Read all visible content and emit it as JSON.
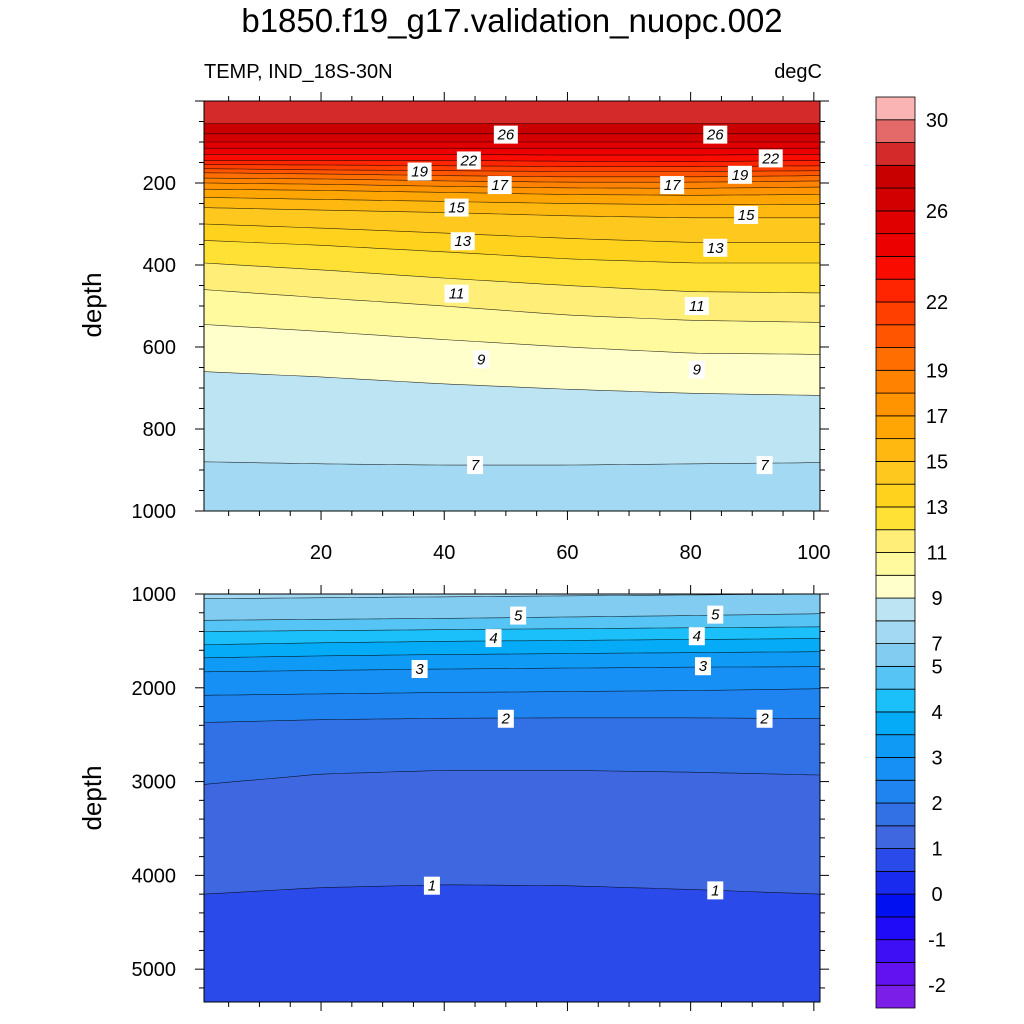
{
  "title": "b1850.f19_g17.validation_nuopc.002",
  "subtitle_left": "TEMP, IND_18S-30N",
  "subtitle_right": "degC",
  "chart_data": [
    {
      "type": "contour",
      "panel": "upper",
      "variable": "TEMP",
      "units": "degC",
      "ylabel": "depth",
      "y_inverted": true,
      "xlim": [
        1,
        101
      ],
      "ylim": [
        0,
        1000
      ],
      "xticks": [
        20,
        40,
        60,
        80,
        100
      ],
      "yticks": [
        200,
        400,
        600,
        800,
        1000
      ],
      "contours": [
        {
          "level": 27,
          "pts": [
            [
              1,
              55
            ],
            [
              20,
              55
            ],
            [
              40,
              55
            ],
            [
              60,
              55
            ],
            [
              80,
              55
            ],
            [
              101,
              55
            ]
          ]
        },
        {
          "level": 26,
          "pts": [
            [
              1,
              80
            ],
            [
              20,
              80
            ],
            [
              40,
              80
            ],
            [
              60,
              80
            ],
            [
              80,
              80
            ],
            [
              101,
              80
            ]
          ]
        },
        {
          "level": 25,
          "pts": [
            [
              1,
              100
            ],
            [
              20,
              100
            ],
            [
              40,
              100
            ],
            [
              60,
              100
            ],
            [
              80,
              100
            ],
            [
              101,
              100
            ]
          ]
        },
        {
          "level": 24,
          "pts": [
            [
              1,
              115
            ],
            [
              20,
              115
            ],
            [
              40,
              115
            ],
            [
              60,
              115
            ],
            [
              80,
              115
            ],
            [
              101,
              115
            ]
          ]
        },
        {
          "level": 23,
          "pts": [
            [
              1,
              130
            ],
            [
              20,
              130
            ],
            [
              40,
              130
            ],
            [
              60,
              132
            ],
            [
              80,
              132
            ],
            [
              101,
              130
            ]
          ]
        },
        {
          "level": 22,
          "pts": [
            [
              1,
              145
            ],
            [
              20,
              145
            ],
            [
              40,
              145
            ],
            [
              60,
              147
            ],
            [
              80,
              148
            ],
            [
              101,
              145
            ]
          ]
        },
        {
          "level": 21,
          "pts": [
            [
              1,
              155
            ],
            [
              20,
              156
            ],
            [
              40,
              158
            ],
            [
              60,
              160
            ],
            [
              80,
              160
            ],
            [
              101,
              158
            ]
          ]
        },
        {
          "level": 20,
          "pts": [
            [
              1,
              165
            ],
            [
              20,
              168
            ],
            [
              40,
              170
            ],
            [
              60,
              172
            ],
            [
              80,
              172
            ],
            [
              101,
              170
            ]
          ]
        },
        {
          "level": 19,
          "pts": [
            [
              1,
              175
            ],
            [
              20,
              178
            ],
            [
              40,
              182
            ],
            [
              60,
              185
            ],
            [
              80,
              185
            ],
            [
              101,
              182
            ]
          ]
        },
        {
          "level": 18,
          "pts": [
            [
              1,
              188
            ],
            [
              20,
              190
            ],
            [
              40,
              195
            ],
            [
              60,
              198
            ],
            [
              80,
              198
            ],
            [
              101,
              195
            ]
          ]
        },
        {
          "level": 17,
          "pts": [
            [
              1,
              200
            ],
            [
              20,
              203
            ],
            [
              40,
              208
            ],
            [
              60,
              212
            ],
            [
              80,
              213
            ],
            [
              101,
              210
            ]
          ]
        },
        {
          "level": 16,
          "pts": [
            [
              1,
              215
            ],
            [
              20,
              218
            ],
            [
              40,
              223
            ],
            [
              60,
              228
            ],
            [
              80,
              230
            ],
            [
              101,
              228
            ]
          ]
        },
        {
          "level": 15,
          "pts": [
            [
              1,
              235
            ],
            [
              20,
              240
            ],
            [
              40,
              245
            ],
            [
              60,
              250
            ],
            [
              80,
              253
            ],
            [
              101,
              252
            ]
          ]
        },
        {
          "level": 14,
          "pts": [
            [
              1,
              260
            ],
            [
              20,
              266
            ],
            [
              40,
              272
            ],
            [
              60,
              280
            ],
            [
              80,
              285
            ],
            [
              101,
              285
            ]
          ]
        },
        {
          "level": 13,
          "pts": [
            [
              1,
              300
            ],
            [
              20,
              310
            ],
            [
              40,
              322
            ],
            [
              60,
              335
            ],
            [
              80,
              345
            ],
            [
              101,
              345
            ]
          ]
        },
        {
          "level": 12,
          "pts": [
            [
              1,
              340
            ],
            [
              20,
              352
            ],
            [
              40,
              368
            ],
            [
              60,
              385
            ],
            [
              80,
              395
            ],
            [
              101,
              395
            ]
          ]
        },
        {
          "level": 11,
          "pts": [
            [
              1,
              395
            ],
            [
              20,
              412
            ],
            [
              40,
              432
            ],
            [
              60,
              450
            ],
            [
              80,
              465
            ],
            [
              101,
              468
            ]
          ]
        },
        {
          "level": 10,
          "pts": [
            [
              1,
              460
            ],
            [
              20,
              480
            ],
            [
              40,
              500
            ],
            [
              60,
              522
            ],
            [
              80,
              535
            ],
            [
              101,
              540
            ]
          ]
        },
        {
          "level": 9,
          "pts": [
            [
              1,
              545
            ],
            [
              20,
              562
            ],
            [
              40,
              582
            ],
            [
              60,
              600
            ],
            [
              80,
              615
            ],
            [
              101,
              618
            ]
          ]
        },
        {
          "level": 8,
          "pts": [
            [
              1,
              660
            ],
            [
              20,
              673
            ],
            [
              40,
              690
            ],
            [
              60,
              703
            ],
            [
              80,
              713
            ],
            [
              101,
              718
            ]
          ]
        },
        {
          "level": 7,
          "pts": [
            [
              1,
              880
            ],
            [
              20,
              885
            ],
            [
              40,
              888
            ],
            [
              60,
              888
            ],
            [
              80,
              885
            ],
            [
              101,
              882
            ]
          ]
        }
      ],
      "labels": [
        {
          "x": 50,
          "y": 82,
          "text": "26"
        },
        {
          "x": 84,
          "y": 82,
          "text": "26"
        },
        {
          "x": 44,
          "y": 145,
          "text": "22"
        },
        {
          "x": 93,
          "y": 140,
          "text": "22"
        },
        {
          "x": 36,
          "y": 172,
          "text": "19"
        },
        {
          "x": 88,
          "y": 180,
          "text": "19"
        },
        {
          "x": 49,
          "y": 205,
          "text": "17"
        },
        {
          "x": 77,
          "y": 205,
          "text": "17"
        },
        {
          "x": 42,
          "y": 260,
          "text": "15"
        },
        {
          "x": 89,
          "y": 278,
          "text": "15"
        },
        {
          "x": 43,
          "y": 342,
          "text": "13"
        },
        {
          "x": 84,
          "y": 358,
          "text": "13"
        },
        {
          "x": 42,
          "y": 470,
          "text": "11"
        },
        {
          "x": 81,
          "y": 500,
          "text": "11"
        },
        {
          "x": 46,
          "y": 630,
          "text": "9"
        },
        {
          "x": 81,
          "y": 655,
          "text": "9"
        },
        {
          "x": 45,
          "y": 888,
          "text": "7"
        },
        {
          "x": 92,
          "y": 888,
          "text": "7"
        }
      ]
    },
    {
      "type": "contour",
      "panel": "lower",
      "variable": "TEMP",
      "units": "degC",
      "ylabel": "depth",
      "y_inverted": true,
      "xlim": [
        1,
        101
      ],
      "ylim": [
        1000,
        5350
      ],
      "xticks": [
        20,
        40,
        60,
        80,
        100
      ],
      "yticks": [
        1000,
        2000,
        3000,
        4000,
        5000
      ],
      "contours": [
        {
          "level": 6,
          "pts": [
            [
              1,
              1050
            ],
            [
              20,
              1040
            ],
            [
              40,
              1030
            ],
            [
              60,
              1020
            ],
            [
              80,
              1010
            ],
            [
              101,
              1000
            ]
          ]
        },
        {
          "level": 5,
          "pts": [
            [
              1,
              1280
            ],
            [
              20,
              1270
            ],
            [
              40,
              1260
            ],
            [
              60,
              1245
            ],
            [
              80,
              1230
            ],
            [
              101,
              1210
            ]
          ]
        },
        {
          "level": 4.5,
          "pts": [
            [
              1,
              1400
            ],
            [
              20,
              1390
            ],
            [
              40,
              1380
            ],
            [
              60,
              1370
            ],
            [
              80,
              1360
            ],
            [
              101,
              1350
            ]
          ]
        },
        {
          "level": 4,
          "pts": [
            [
              1,
              1540
            ],
            [
              20,
              1520
            ],
            [
              40,
              1505
            ],
            [
              60,
              1495
            ],
            [
              80,
              1485
            ],
            [
              101,
              1475
            ]
          ]
        },
        {
          "level": 3.5,
          "pts": [
            [
              1,
              1680
            ],
            [
              20,
              1660
            ],
            [
              40,
              1645
            ],
            [
              60,
              1635
            ],
            [
              80,
              1625
            ],
            [
              101,
              1615
            ]
          ]
        },
        {
          "level": 3,
          "pts": [
            [
              1,
              1830
            ],
            [
              20,
              1815
            ],
            [
              40,
              1800
            ],
            [
              60,
              1790
            ],
            [
              80,
              1780
            ],
            [
              101,
              1775
            ]
          ]
        },
        {
          "level": 2.5,
          "pts": [
            [
              1,
              2080
            ],
            [
              20,
              2065
            ],
            [
              40,
              2050
            ],
            [
              60,
              2040
            ],
            [
              80,
              2030
            ],
            [
              101,
              2010
            ]
          ]
        },
        {
          "level": 2,
          "pts": [
            [
              1,
              2370
            ],
            [
              20,
              2340
            ],
            [
              40,
              2325
            ],
            [
              60,
              2320
            ],
            [
              80,
              2320
            ],
            [
              101,
              2330
            ]
          ]
        },
        {
          "level": 1.5,
          "pts": [
            [
              1,
              3030
            ],
            [
              20,
              2920
            ],
            [
              40,
              2880
            ],
            [
              60,
              2880
            ],
            [
              80,
              2900
            ],
            [
              101,
              2930
            ]
          ]
        },
        {
          "level": 1,
          "pts": [
            [
              1,
              4200
            ],
            [
              20,
              4130
            ],
            [
              40,
              4100
            ],
            [
              60,
              4110
            ],
            [
              80,
              4150
            ],
            [
              101,
              4200
            ]
          ]
        }
      ],
      "labels": [
        {
          "x": 52,
          "y": 1230,
          "text": "5"
        },
        {
          "x": 84,
          "y": 1220,
          "text": "5"
        },
        {
          "x": 48,
          "y": 1470,
          "text": "4"
        },
        {
          "x": 81,
          "y": 1450,
          "text": "4"
        },
        {
          "x": 36,
          "y": 1800,
          "text": "3"
        },
        {
          "x": 82,
          "y": 1770,
          "text": "3"
        },
        {
          "x": 50,
          "y": 2330,
          "text": "2"
        },
        {
          "x": 92,
          "y": 2330,
          "text": "2"
        },
        {
          "x": 38,
          "y": 4110,
          "text": "1"
        },
        {
          "x": 84,
          "y": 4160,
          "text": "1"
        }
      ]
    }
  ],
  "colorbar": {
    "levels": [
      -2.5,
      -2,
      -1.5,
      -1,
      -0.5,
      0,
      0.5,
      1,
      1.5,
      2,
      2.5,
      3,
      3.5,
      4,
      4.5,
      5,
      6,
      7,
      8,
      9,
      10,
      11,
      12,
      13,
      14,
      15,
      16,
      17,
      18,
      19,
      20,
      21,
      22,
      23,
      24,
      25,
      26,
      27,
      28,
      29,
      30,
      31,
      32
    ],
    "colors": [
      "#7B1FE8",
      "#6212F0",
      "#3E0FF5",
      "#1F0BF7",
      "#0010F0",
      "#1A2BF0",
      "#2A4BEA",
      "#3F68E0",
      "#3270E5",
      "#1F83F0",
      "#1690F5",
      "#0F9BF5",
      "#05ABF7",
      "#1BC0FB",
      "#56C5F6",
      "#82CCF1",
      "#A4D9F3",
      "#BDE4F3",
      "#FFFFCC",
      "#FFFA9E",
      "#FFEE78",
      "#FFE135",
      "#FFD21E",
      "#FFC81E",
      "#FFB810",
      "#FFA605",
      "#FF9400",
      "#FF8200",
      "#FF6E00",
      "#FF5500",
      "#FF3F00",
      "#FF2500",
      "#FA0B00",
      "#EC0000",
      "#E10000",
      "#D30000",
      "#C80000",
      "#D42A2A",
      "#E46A6A",
      "#FAB4B4"
    ],
    "tick_labels": [
      "-2",
      "-1",
      "0",
      "1",
      "2",
      "3",
      "4",
      "5",
      "7",
      "9",
      "11",
      "13",
      "15",
      "17",
      "19",
      "22",
      "26",
      "30"
    ]
  }
}
